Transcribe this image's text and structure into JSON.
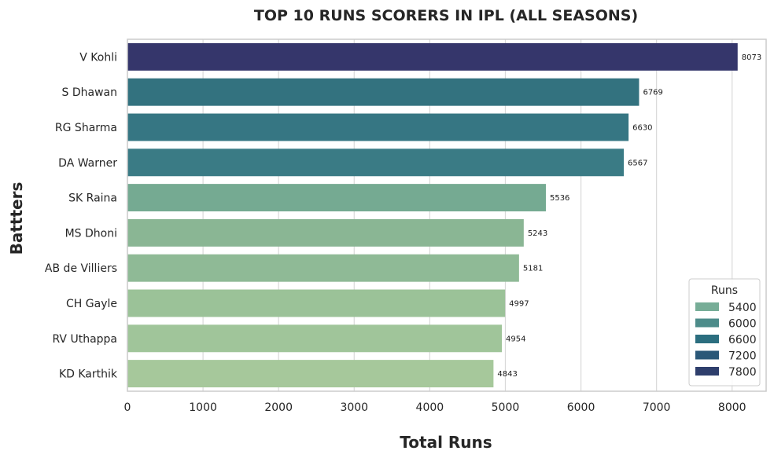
{
  "chart_data": {
    "type": "bar",
    "orientation": "horizontal",
    "title": "TOP 10 RUNS SCORERS IN IPL (ALL SEASONS)",
    "xlabel": "Total Runs",
    "ylabel": "Battters",
    "xlim": [
      0,
      8450
    ],
    "xticks": [
      0,
      1000,
      2000,
      3000,
      4000,
      5000,
      6000,
      7000,
      8000
    ],
    "grid": true,
    "categories": [
      "V Kohli",
      "S Dhawan",
      "RG Sharma",
      "DA Warner",
      "SK Raina",
      "MS Dhoni",
      "AB de Villiers",
      "CH Gayle",
      "RV Uthappa",
      "KD Karthik"
    ],
    "values": [
      8073,
      6769,
      6630,
      6567,
      5536,
      5243,
      5181,
      4997,
      4954,
      4843
    ],
    "data_labels": [
      "8073",
      "6769",
      "6630",
      "6567",
      "5536",
      "5243",
      "5181",
      "4997",
      "4954",
      "4843"
    ],
    "bar_colors": [
      "#35366b",
      "#33727f",
      "#367683",
      "#3a7b85",
      "#75aa92",
      "#8ab694",
      "#8fba96",
      "#9bc298",
      "#a0c59a",
      "#a6c89b"
    ],
    "legend": {
      "title": "Runs",
      "placement": "lower-right",
      "entries": [
        {
          "label": "5400",
          "color": "#77ad97"
        },
        {
          "label": "6000",
          "color": "#4d8c8a"
        },
        {
          "label": "6600",
          "color": "#2b6e7f"
        },
        {
          "label": "7200",
          "color": "#2a5878"
        },
        {
          "label": "7800",
          "color": "#2e3e6c"
        }
      ]
    }
  }
}
